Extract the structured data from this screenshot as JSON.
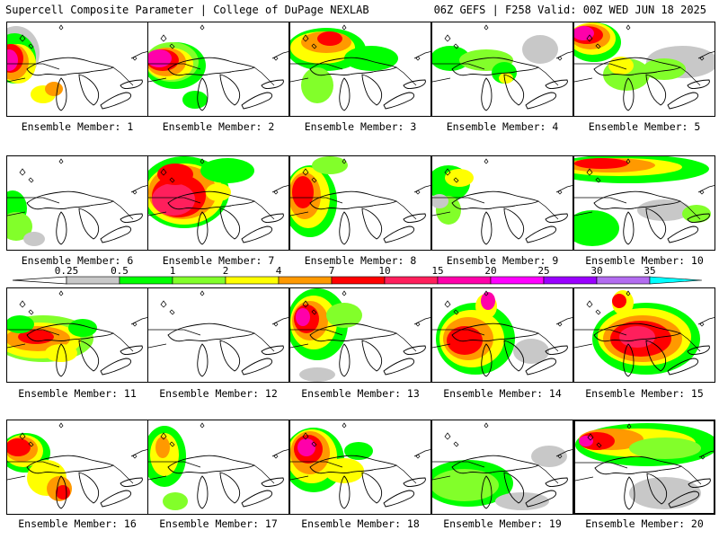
{
  "header": {
    "title": "Supercell Composite Parameter | College of DuPage NEXLAB",
    "run_info": "06Z GEFS | F258 Valid: 00Z WED JUN 18 2025"
  },
  "legend": {
    "levels": [
      "0.25",
      "0.5",
      "1",
      "2",
      "4",
      "7",
      "10",
      "15",
      "20",
      "25",
      "30",
      "35"
    ],
    "colors": [
      "#c8c8c8",
      "#00ff00",
      "#82ff2a",
      "#ffff00",
      "#ff9900",
      "#ff0000",
      "#ff1f5c",
      "#ff00aa",
      "#ff00ff",
      "#9a00ff",
      "#b36cf0",
      "#00ffff"
    ]
  },
  "map": {
    "background": "#ffffff",
    "coastline_color": "#000000",
    "field_colors": {
      "gray": "#c8c8c8",
      "green": "#00ff00",
      "lightgreen": "#82ff2a",
      "yellow": "#ffff00",
      "orange": "#ff9900",
      "red": "#ff0000",
      "pink": "#ff1f5c",
      "magenta": "#ff00aa"
    }
  },
  "panels": [
    {
      "label": "Ensemble Member: 1",
      "intensity": "high"
    },
    {
      "label": "Ensemble Member: 2",
      "intensity": "high"
    },
    {
      "label": "Ensemble Member: 3",
      "intensity": "moderate"
    },
    {
      "label": "Ensemble Member: 4",
      "intensity": "low"
    },
    {
      "label": "Ensemble Member: 5",
      "intensity": "high"
    },
    {
      "label": "Ensemble Member: 6",
      "intensity": "low"
    },
    {
      "label": "Ensemble Member: 7",
      "intensity": "high"
    },
    {
      "label": "Ensemble Member: 8",
      "intensity": "moderate"
    },
    {
      "label": "Ensemble Member: 9",
      "intensity": "low"
    },
    {
      "label": "Ensemble Member: 10",
      "intensity": "high"
    },
    {
      "label": "Ensemble Member: 11",
      "intensity": "moderate"
    },
    {
      "label": "Ensemble Member: 12",
      "intensity": "none"
    },
    {
      "label": "Ensemble Member: 13",
      "intensity": "high"
    },
    {
      "label": "Ensemble Member: 14",
      "intensity": "high"
    },
    {
      "label": "Ensemble Member: 15",
      "intensity": "high"
    },
    {
      "label": "Ensemble Member: 16",
      "intensity": "high"
    },
    {
      "label": "Ensemble Member: 17",
      "intensity": "low"
    },
    {
      "label": "Ensemble Member: 18",
      "intensity": "high"
    },
    {
      "label": "Ensemble Member: 19",
      "intensity": "low"
    },
    {
      "label": "Ensemble Member: 20",
      "intensity": "moderate"
    }
  ]
}
